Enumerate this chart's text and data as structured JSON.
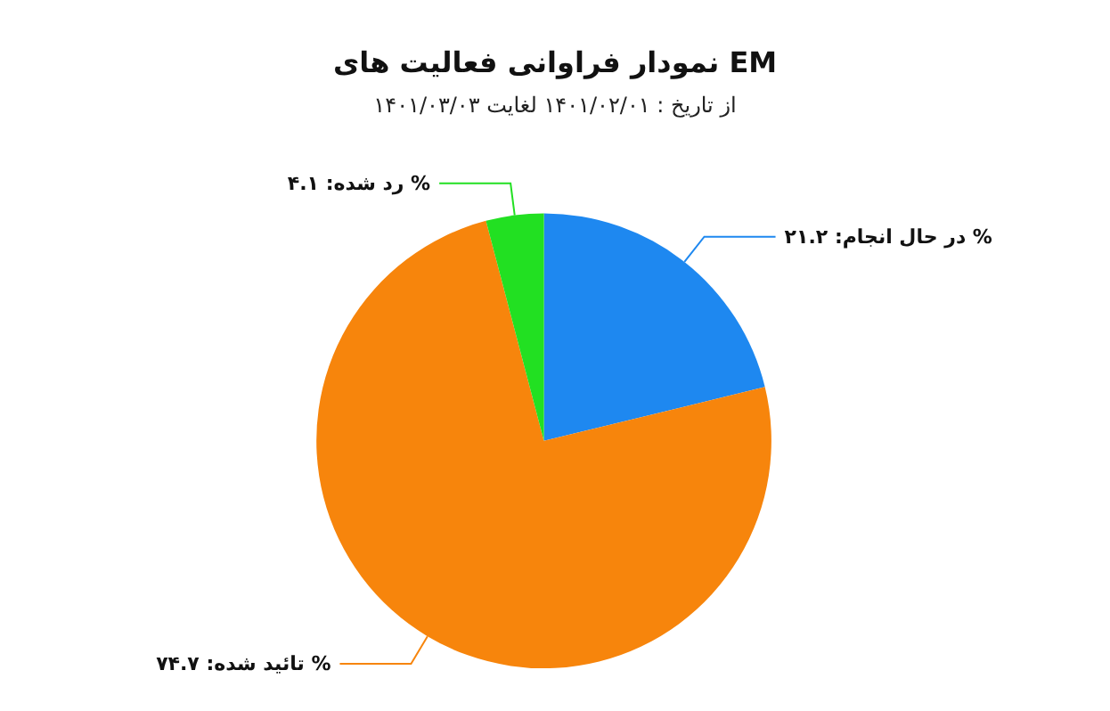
{
  "chart_data": {
    "type": "pie",
    "title": "نمودار فراوانی فعالیت های EM",
    "subtitle": "از تاریخ : ۱۴۰۱/۰۲/۰۱ لغایت ۱۴۰۱/۰۳/۰۳",
    "categories": [
      "% در حال انجام",
      "% تائید شده",
      "% رد شده"
    ],
    "values": [
      21.2,
      74.7,
      4.1
    ],
    "value_labels": [
      "۲۱.۲",
      "۷۴.۷",
      "۴.۱"
    ],
    "colors": [
      "#1e88f0",
      "#f7850c",
      "#22e022"
    ],
    "legend": false
  }
}
